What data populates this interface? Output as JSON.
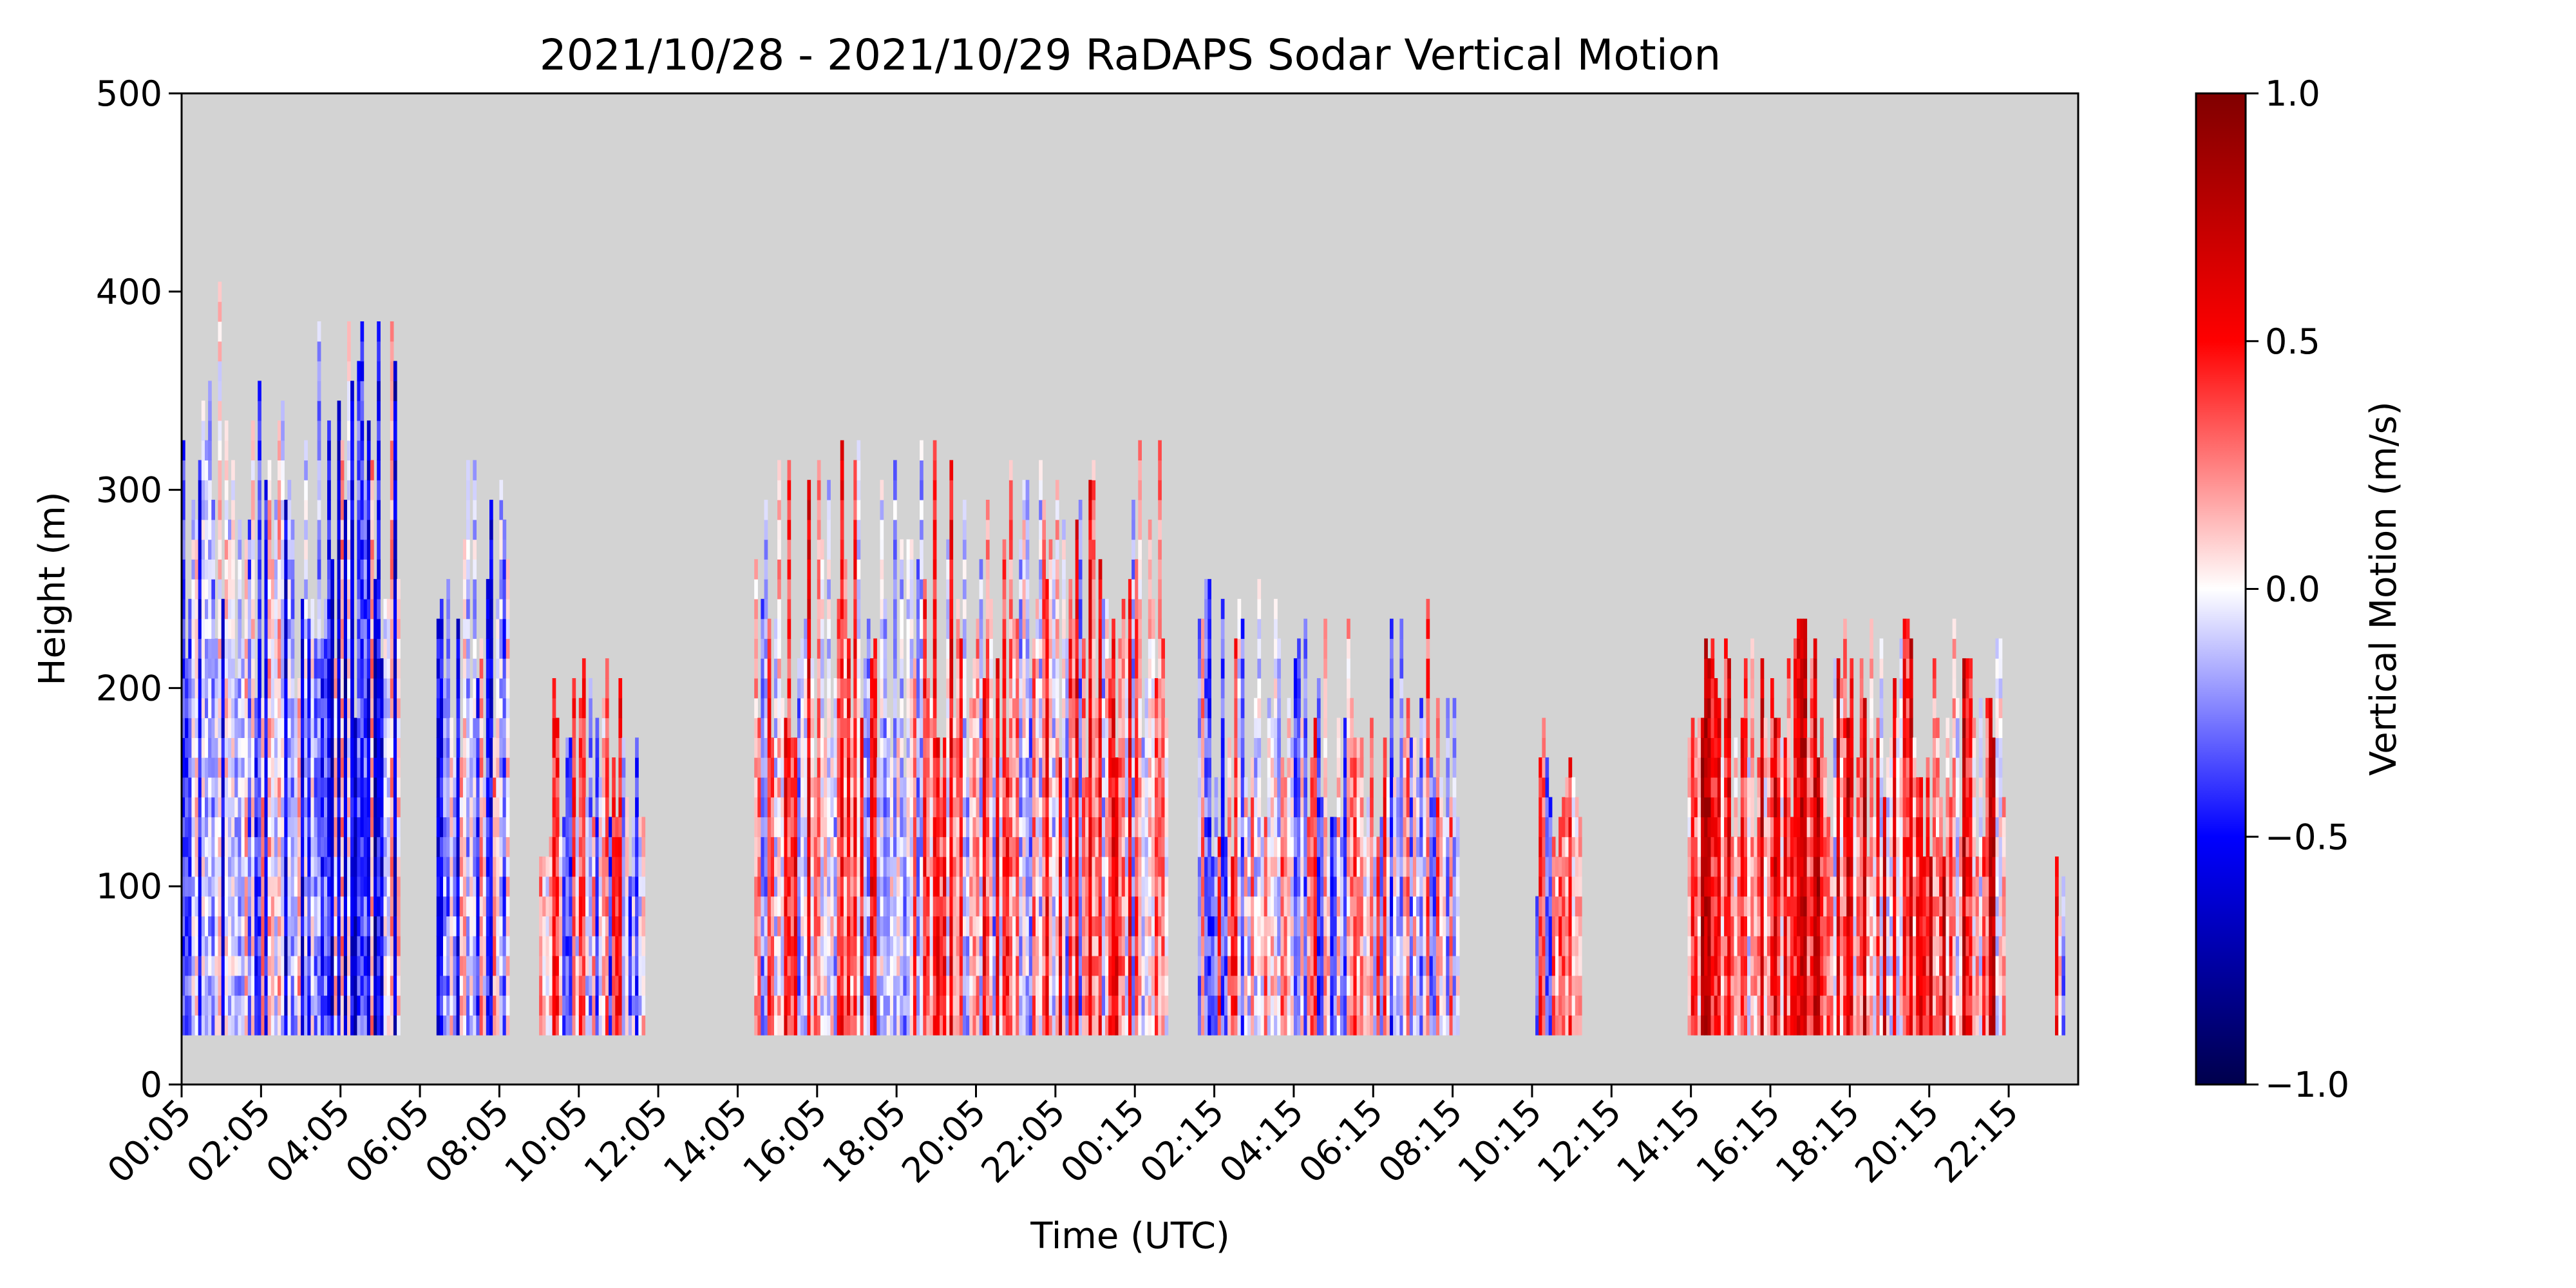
{
  "chart_data": {
    "type": "heatmap",
    "title": "2021/10/28 - 2021/10/29 RaDAPS Sodar Vertical Motion",
    "xlabel": "Time (UTC)",
    "ylabel": "Height (m)",
    "xlim": [
      0,
      2865
    ],
    "ylim": [
      0,
      500
    ],
    "x_ticks": [
      {
        "t": 0,
        "label": "00:05"
      },
      {
        "t": 120,
        "label": "02:05"
      },
      {
        "t": 240,
        "label": "04:05"
      },
      {
        "t": 360,
        "label": "06:05"
      },
      {
        "t": 480,
        "label": "08:05"
      },
      {
        "t": 600,
        "label": "10:05"
      },
      {
        "t": 720,
        "label": "12:05"
      },
      {
        "t": 840,
        "label": "14:05"
      },
      {
        "t": 960,
        "label": "16:05"
      },
      {
        "t": 1080,
        "label": "18:05"
      },
      {
        "t": 1200,
        "label": "20:05"
      },
      {
        "t": 1320,
        "label": "22:05"
      },
      {
        "t": 1440,
        "label": "00:15"
      },
      {
        "t": 1560,
        "label": "02:15"
      },
      {
        "t": 1680,
        "label": "04:15"
      },
      {
        "t": 1800,
        "label": "06:15"
      },
      {
        "t": 1920,
        "label": "08:15"
      },
      {
        "t": 2040,
        "label": "10:15"
      },
      {
        "t": 2160,
        "label": "12:15"
      },
      {
        "t": 2280,
        "label": "14:15"
      },
      {
        "t": 2400,
        "label": "16:15"
      },
      {
        "t": 2520,
        "label": "18:15"
      },
      {
        "t": 2640,
        "label": "20:15"
      },
      {
        "t": 2760,
        "label": "22:15"
      }
    ],
    "y_ticks": [
      0,
      100,
      200,
      300,
      400,
      500
    ],
    "missing_color": "#d3d3d3",
    "colorbar": {
      "label": "Vertical Motion (m/s)",
      "colormap": "seismic",
      "range": [
        -1.0,
        1.0
      ],
      "ticks": [
        "1.0",
        "0.5",
        "0.0",
        "−0.5",
        "−1.0"
      ]
    },
    "min_height": 25,
    "segments": [
      {
        "t0": 0,
        "t1": 330,
        "top": 400,
        "bias": -0.22
      },
      {
        "t0": 385,
        "t1": 495,
        "top": 310,
        "bias": -0.2
      },
      {
        "t0": 540,
        "t1": 700,
        "top": 215,
        "bias": 0.02
      },
      {
        "t0": 865,
        "t1": 1490,
        "top": 325,
        "bias": 0.15
      },
      {
        "t0": 1535,
        "t1": 1930,
        "top": 250,
        "bias": 0.03
      },
      {
        "t0": 2045,
        "t1": 2115,
        "top": 190,
        "bias": 0.05
      },
      {
        "t0": 2275,
        "t1": 2755,
        "top": 235,
        "bias": 0.35
      },
      {
        "t0": 2830,
        "t1": 2845,
        "top": 130,
        "bias": 0.2
      }
    ]
  }
}
